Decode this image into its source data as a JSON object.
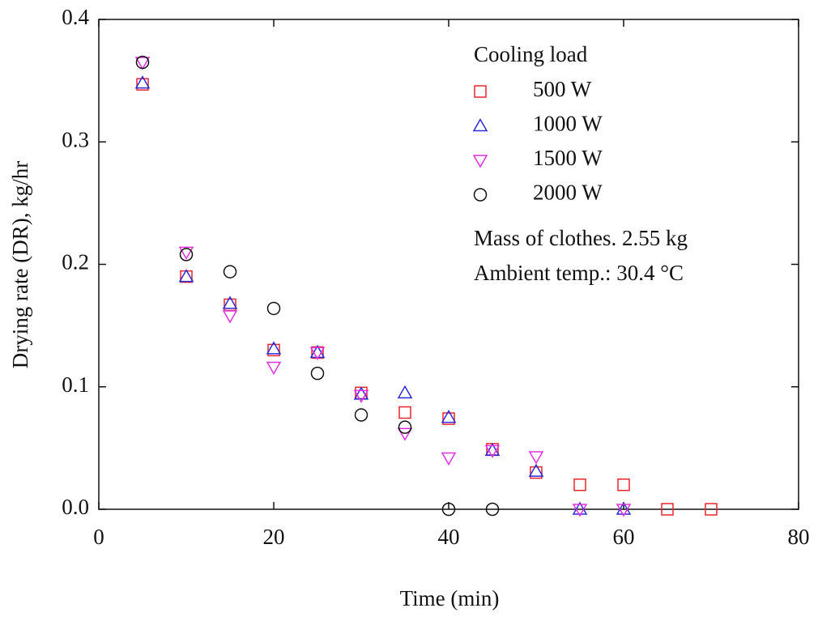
{
  "chart_data": {
    "type": "scatter",
    "x_label": "Time (min)",
    "y_label": "Drying rate (DR), kg/hr",
    "xlim": [
      0,
      80
    ],
    "ylim": [
      0,
      0.4
    ],
    "xticks": [
      0,
      20,
      40,
      60,
      80
    ],
    "yticks": [
      {
        "value": 0,
        "label": "0.0"
      },
      0.1,
      0.2,
      0.3,
      0.4
    ],
    "legend_title": "Cooling load",
    "legend_position": "upper right",
    "annotations": [
      "Mass of clothes. 2.55 kg",
      "Ambient temp.: 30.4 °C"
    ],
    "series": [
      {
        "name": "500 W",
        "color": "#e8262e",
        "marker": "square",
        "x": [
          5,
          10,
          15,
          20,
          25,
          30,
          35,
          40,
          45,
          50,
          55,
          60,
          65,
          70
        ],
        "values": [
          0.347,
          0.19,
          0.167,
          0.13,
          0.128,
          0.095,
          0.079,
          0.074,
          0.049,
          0.03,
          0.02,
          0.02,
          0.0,
          0.0
        ]
      },
      {
        "name": "1000 W",
        "color": "#2b2bd6",
        "marker": "triangle",
        "x": [
          5,
          10,
          15,
          20,
          25,
          30,
          35,
          40,
          45,
          50,
          55,
          60
        ],
        "values": [
          0.348,
          0.19,
          0.168,
          0.131,
          0.128,
          0.094,
          0.095,
          0.075,
          0.048,
          0.031,
          0.0,
          0.0
        ]
      },
      {
        "name": "1500 W",
        "color": "#e030e0",
        "marker": "triangle-down",
        "x": [
          5,
          10,
          15,
          20,
          25,
          30,
          35,
          40,
          45,
          50,
          55,
          60
        ],
        "values": [
          0.365,
          0.21,
          0.158,
          0.116,
          0.128,
          0.093,
          0.062,
          0.042,
          0.048,
          0.043,
          0.0,
          0.0
        ]
      },
      {
        "name": "2000 W",
        "color": "#111111",
        "marker": "circle",
        "x": [
          5,
          10,
          15,
          20,
          25,
          30,
          35,
          40,
          45
        ],
        "values": [
          0.365,
          0.208,
          0.194,
          0.164,
          0.111,
          0.077,
          0.067,
          0.0,
          0.0
        ]
      }
    ]
  }
}
